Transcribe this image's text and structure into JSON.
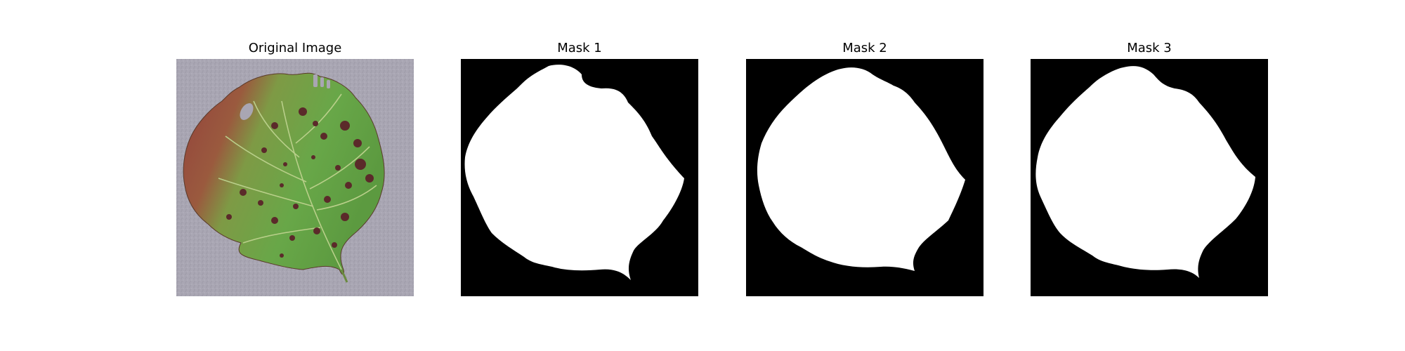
{
  "figure": {
    "panels": [
      {
        "title": "Original Image",
        "kind": "photo"
      },
      {
        "title": "Mask 1",
        "kind": "mask"
      },
      {
        "title": "Mask 2",
        "kind": "mask"
      },
      {
        "title": "Mask 3",
        "kind": "mask"
      }
    ]
  },
  "colors": {
    "background": "#ffffff",
    "mask_background": "#000000",
    "mask_foreground": "#ffffff",
    "photo_surface": "#a9a6b3",
    "leaf_green": "#6fa84a",
    "leaf_green_dark": "#4f8a36",
    "leaf_red": "#8e3b3c",
    "leaf_spot": "#5b2a2a",
    "leaf_vein": "#b9cf8a"
  }
}
